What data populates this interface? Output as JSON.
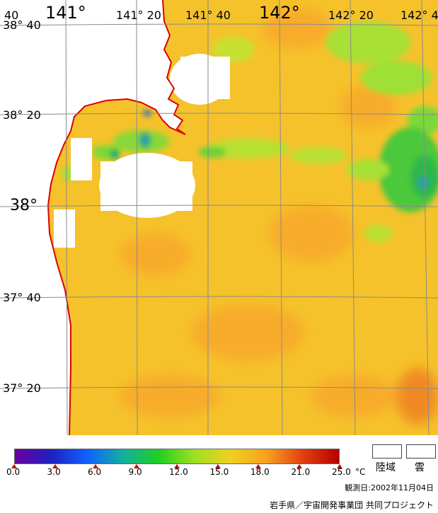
{
  "map": {
    "lon_labels": [
      {
        "text": "40",
        "size": "sm"
      },
      {
        "text": "141°",
        "size": "lg"
      },
      {
        "text": "141° 20",
        "size": "sm"
      },
      {
        "text": "141° 40",
        "size": "sm"
      },
      {
        "text": "142°",
        "size": "lg"
      },
      {
        "text": "142° 20",
        "size": "sm"
      },
      {
        "text": "142° 4",
        "size": "sm"
      }
    ],
    "lat_labels": [
      {
        "text": "38° 40"
      },
      {
        "text": "38° 20"
      },
      {
        "text": "38°"
      },
      {
        "text": "37° 40"
      },
      {
        "text": "37° 20"
      }
    ],
    "colors": {
      "sea_base": "#f5c22b",
      "sea_warm": "#f8a82a",
      "sea_green": "#a8e034",
      "sea_green_dark": "#35c83a",
      "sea_blue": "#2aa0a8",
      "land": "#ffffff",
      "coast": "#dd0000",
      "grid": "#8a8a8a"
    }
  },
  "colorbar": {
    "ticks": [
      "0.0",
      "3.0",
      "6.0",
      "9.0",
      "12.0",
      "15.0",
      "18.0",
      "21.0",
      "25.0"
    ],
    "unit": "°C",
    "gradient": [
      "#6a00a0",
      "#2020c0",
      "#1060ff",
      "#10b0a0",
      "#20d020",
      "#a0e020",
      "#f0d020",
      "#f8a020",
      "#e04010",
      "#b80000"
    ]
  },
  "legend": {
    "land_label": "陸域",
    "cloud_label": "雲"
  },
  "footer": {
    "observation_date": "観測日:2002年11月04日",
    "credits": "岩手県／宇宙開発事業団 共同プロジェクト"
  }
}
